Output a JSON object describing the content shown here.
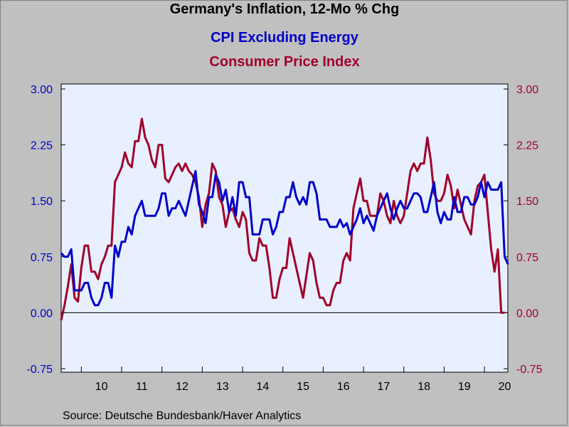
{
  "title": "Germany's Inflation, 12-Mo % Chg",
  "source": "Source:  Deutsche Bundesbank/Haver Analytics",
  "colors": {
    "background": "#c0c0c0",
    "plot_background": "#e8f0ff",
    "cpi_ex_energy": "#0000c8",
    "cpi": "#a0002a",
    "zero_line": "#000000"
  },
  "chart_data": {
    "type": "line",
    "title": "Germany's Inflation, 12-Mo % Chg",
    "xlabel": "",
    "ylabel": "",
    "ylim": [
      -0.75,
      3.0
    ],
    "y_ticks": [
      "3.00",
      "2.25",
      "1.50",
      "0.75",
      "0.00",
      "-0.75"
    ],
    "y_tick_values": [
      3.0,
      2.25,
      1.5,
      0.75,
      0.0,
      -0.75
    ],
    "x_range": [
      2009.5,
      2020.58
    ],
    "x_tick_labels": [
      "10",
      "11",
      "12",
      "13",
      "14",
      "15",
      "16",
      "17",
      "18",
      "19",
      "20"
    ],
    "x_tick_centers": [
      2010.5,
      2011.5,
      2012.5,
      2013.5,
      2014.5,
      2015.5,
      2016.5,
      2017.5,
      2018.5,
      2019.5,
      2020.5
    ],
    "x_year_boundaries": [
      2010,
      2011,
      2012,
      2013,
      2014,
      2015,
      2016,
      2017,
      2018,
      2019,
      2020
    ],
    "start": 2009.5,
    "step": 0.0833333,
    "legend": "subtitle",
    "grid": false,
    "series": [
      {
        "name": "CPI Excluding Energy",
        "axis": "left",
        "values": [
          0.8,
          0.75,
          0.75,
          0.85,
          0.3,
          0.3,
          0.3,
          0.4,
          0.4,
          0.2,
          0.1,
          0.1,
          0.2,
          0.4,
          0.4,
          0.2,
          0.9,
          0.75,
          0.95,
          0.95,
          1.15,
          1.05,
          1.3,
          1.4,
          1.5,
          1.3,
          1.3,
          1.3,
          1.3,
          1.4,
          1.6,
          1.6,
          1.3,
          1.4,
          1.4,
          1.5,
          1.4,
          1.3,
          1.5,
          1.7,
          1.9,
          1.45,
          1.35,
          1.2,
          1.55,
          1.55,
          1.85,
          1.75,
          1.5,
          1.65,
          1.35,
          1.55,
          1.3,
          1.75,
          1.75,
          1.55,
          1.55,
          1.05,
          1.05,
          1.05,
          1.25,
          1.25,
          1.25,
          1.05,
          1.15,
          1.35,
          1.35,
          1.55,
          1.55,
          1.75,
          1.55,
          1.45,
          1.55,
          1.45,
          1.75,
          1.75,
          1.6,
          1.25,
          1.25,
          1.25,
          1.15,
          1.15,
          1.15,
          1.25,
          1.15,
          1.2,
          1.05,
          1.15,
          1.25,
          1.4,
          1.2,
          1.3,
          1.2,
          1.1,
          1.3,
          1.4,
          1.5,
          1.6,
          1.4,
          1.25,
          1.4,
          1.5,
          1.4,
          1.4,
          1.5,
          1.6,
          1.6,
          1.55,
          1.35,
          1.35,
          1.55,
          1.75,
          1.35,
          1.2,
          1.35,
          1.25,
          1.25,
          1.55,
          1.35,
          1.35,
          1.55,
          1.55,
          1.45,
          1.45,
          1.55,
          1.75,
          1.55,
          1.75,
          1.65,
          1.65,
          1.65,
          1.75,
          0.75,
          0.65
        ]
      },
      {
        "name": "Consumer Price Index",
        "axis": "right",
        "values": [
          -0.1,
          0.1,
          0.35,
          0.65,
          0.2,
          0.15,
          0.6,
          0.9,
          0.9,
          0.55,
          0.55,
          0.45,
          0.65,
          0.75,
          0.9,
          0.9,
          1.75,
          1.85,
          1.95,
          2.15,
          2.0,
          1.95,
          2.3,
          2.3,
          2.6,
          2.35,
          2.25,
          2.05,
          1.95,
          2.25,
          2.25,
          1.8,
          1.75,
          1.85,
          1.95,
          2.0,
          1.9,
          2.0,
          1.9,
          1.85,
          1.75,
          1.55,
          1.15,
          1.45,
          1.6,
          2.0,
          1.9,
          1.55,
          1.45,
          1.15,
          1.35,
          1.4,
          1.25,
          1.15,
          1.35,
          1.25,
          0.8,
          0.7,
          0.7,
          1.0,
          0.9,
          0.9,
          0.6,
          0.2,
          0.2,
          0.45,
          0.6,
          0.6,
          1.0,
          0.8,
          0.6,
          0.4,
          0.2,
          0.5,
          0.8,
          0.7,
          0.4,
          0.2,
          0.2,
          0.1,
          0.1,
          0.3,
          0.4,
          0.4,
          0.7,
          0.8,
          0.7,
          1.4,
          1.6,
          1.8,
          1.5,
          1.5,
          1.3,
          1.3,
          1.3,
          1.6,
          1.5,
          1.3,
          1.2,
          1.5,
          1.3,
          1.2,
          1.3,
          1.6,
          1.9,
          2.0,
          1.9,
          2.0,
          2.0,
          2.35,
          2.05,
          1.6,
          1.5,
          1.5,
          1.6,
          1.85,
          1.7,
          1.4,
          1.65,
          1.45,
          1.25,
          1.15,
          1.05,
          1.5,
          1.7,
          1.75,
          1.85,
          1.35,
          0.85,
          0.55,
          0.85,
          0.0,
          0.0
        ]
      }
    ]
  }
}
